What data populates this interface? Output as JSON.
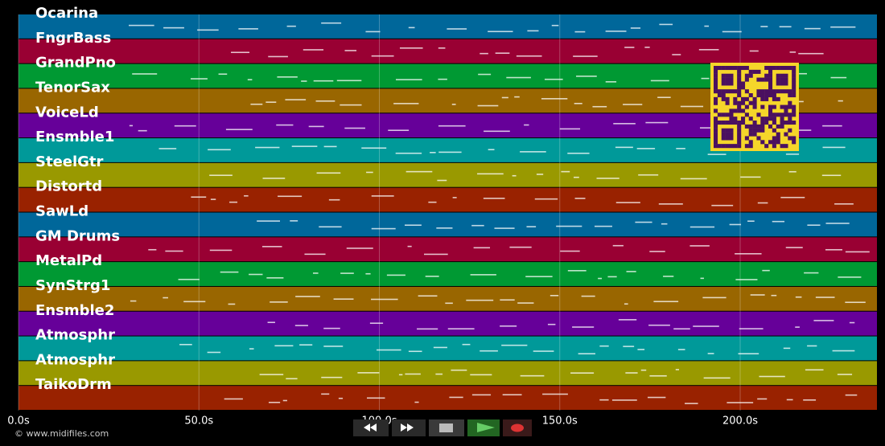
{
  "tracks": [
    "Ocarina",
    "FngrBass",
    "GrandPno",
    "TenorSax",
    "VoiceLd",
    "Ensmble1",
    "SteelGtr",
    "Distortd",
    "SawLd",
    "GM Drums",
    "MetalPd",
    "SynStrg1",
    "Ensmble2",
    "Atmosphr",
    "Atmosphr",
    "TaikoDrm"
  ],
  "track_colors": [
    "#00679a",
    "#990033",
    "#009933",
    "#996600",
    "#660099",
    "#009999",
    "#999900",
    "#992200"
  ],
  "time_axis": {
    "xlim": [
      0,
      237.9
    ],
    "xticks": [
      {
        "value": 0,
        "label": "0.0s"
      },
      {
        "value": 50,
        "label": "50.0s"
      },
      {
        "value": 100,
        "label": "100.0s"
      },
      {
        "value": 150,
        "label": "150.0s"
      },
      {
        "value": 200,
        "label": "200.0s"
      }
    ]
  },
  "footer": "© www.midifiles.com"
}
